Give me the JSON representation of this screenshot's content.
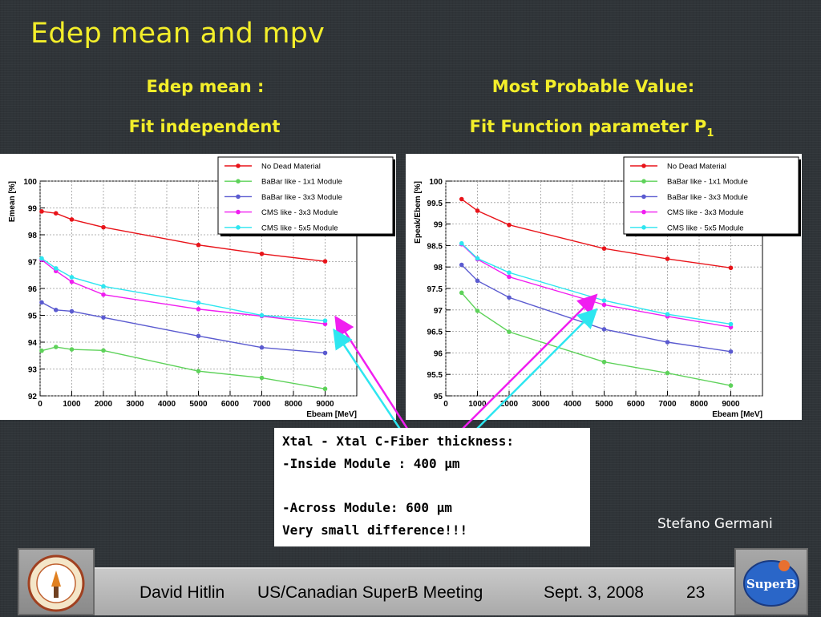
{
  "slide": {
    "title": "Edep mean and mpv",
    "left_heading": "Edep mean :",
    "left_subheading": "Fit independent",
    "right_heading": "Most Probable Value:",
    "right_subheading": "Fit Function parameter P",
    "right_subheading_sub": "1",
    "author": "Stefano Germani"
  },
  "note": {
    "line1": "Xtal - Xtal C-Fiber thickness:",
    "line2": "-Inside Module : 400 μm",
    "line3": "-Across Module: 600 μm",
    "line4": "Very small difference!!!"
  },
  "footer": {
    "presenter": "David Hitlin",
    "meeting": "US/Canadian SuperB Meeting",
    "date": "Sept. 3, 2008",
    "page": "23",
    "right_logo_text": "SuperB"
  },
  "colors": {
    "title": "#f3ee2a",
    "no_dead": "#e8141a",
    "babar1": "#5ed25a",
    "babar3": "#5b5bd0",
    "cms3": "#f01ef0",
    "cms5": "#2ee6f0"
  },
  "chart_data": [
    {
      "type": "line",
      "xlabel": "Ebeam [MeV]",
      "ylabel": "Emean [%]",
      "xlim": [
        0,
        10000
      ],
      "ylim": [
        92,
        100
      ],
      "xticks": [
        0,
        1000,
        2000,
        3000,
        4000,
        5000,
        6000,
        7000,
        8000,
        9000
      ],
      "yticks": [
        92,
        93,
        94,
        95,
        96,
        97,
        98,
        99,
        100
      ],
      "grid": true,
      "legend": "top-right",
      "x": [
        50,
        500,
        1000,
        2000,
        5000,
        7000,
        9000
      ],
      "series": [
        {
          "name": "No Dead Material",
          "values": [
            98.87,
            98.8,
            98.57,
            98.28,
            97.62,
            97.29,
            97.01
          ]
        },
        {
          "name": "BaBar like - 1x1 Module",
          "values": [
            93.68,
            93.82,
            93.73,
            93.69,
            92.92,
            92.67,
            92.26
          ]
        },
        {
          "name": "BaBar like - 3x3 Module",
          "values": [
            95.48,
            95.2,
            95.15,
            94.92,
            94.23,
            93.8,
            93.6
          ]
        },
        {
          "name": "CMS like  - 3x3 Module",
          "values": [
            97.07,
            96.65,
            96.25,
            95.77,
            95.23,
            94.97,
            94.68
          ]
        },
        {
          "name": "CMS like  - 5x5 Module",
          "values": [
            97.12,
            96.75,
            96.42,
            96.08,
            95.47,
            95.0,
            94.8
          ]
        }
      ]
    },
    {
      "type": "line",
      "xlabel": "Ebeam [MeV]",
      "ylabel": "Epeak/Ebem [%]",
      "xlim": [
        0,
        10000
      ],
      "ylim": [
        95,
        100
      ],
      "xticks": [
        0,
        1000,
        2000,
        3000,
        4000,
        5000,
        6000,
        7000,
        8000,
        9000
      ],
      "yticks": [
        95,
        95.5,
        96,
        96.5,
        97,
        97.5,
        98,
        98.5,
        99,
        99.5,
        100
      ],
      "grid": true,
      "legend": "top-right",
      "x": [
        500,
        1000,
        2000,
        5000,
        7000,
        9000
      ],
      "series": [
        {
          "name": "No Dead Material",
          "values": [
            99.58,
            99.31,
            98.98,
            98.43,
            98.19,
            97.98
          ]
        },
        {
          "name": "BaBar like - 1x1 Module",
          "values": [
            97.4,
            96.98,
            96.49,
            95.79,
            95.53,
            95.24
          ]
        },
        {
          "name": "BaBar like - 3x3 Module",
          "values": [
            98.05,
            97.68,
            97.29,
            96.55,
            96.25,
            96.03
          ]
        },
        {
          "name": "CMS like  - 3x3 Module",
          "values": [
            98.53,
            98.18,
            97.77,
            97.12,
            96.85,
            96.6
          ]
        },
        {
          "name": "CMS like  - 5x5 Module",
          "values": [
            98.55,
            98.2,
            97.87,
            97.22,
            96.9,
            96.67
          ]
        }
      ]
    }
  ]
}
